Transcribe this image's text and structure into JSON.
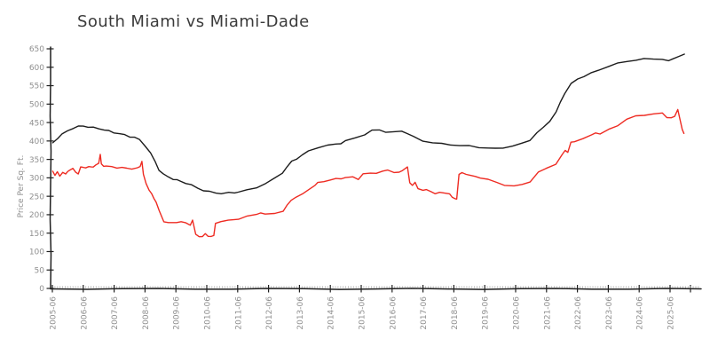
{
  "chart_data": {
    "type": "line",
    "title": "South Miami vs Miami-Dade",
    "xlabel": "",
    "ylabel": "Price Per Sq. Ft.",
    "style": "xkcd-sketch",
    "grid": false,
    "legend": "none",
    "ylim": [
      0,
      650
    ],
    "y_ticks": [
      0,
      50,
      100,
      150,
      200,
      250,
      300,
      350,
      400,
      450,
      500,
      550,
      600,
      650
    ],
    "x_tick_labels": [
      "2005-06",
      "2006-06",
      "2007-06",
      "2008-06",
      "2009-06",
      "2010-06",
      "2011-06",
      "2012-06",
      "2013-06",
      "2014-06",
      "2015-06",
      "2016-06",
      "2017-06",
      "2018-06",
      "2019-06",
      "2020-06",
      "2021-06",
      "2022-06",
      "2023-06",
      "2024-06",
      "2025-06"
    ],
    "x_minor_ticks_per_year": 12,
    "colors": {
      "axis": "#1f1f1f",
      "tick_labels": "#8f8f8f",
      "minor_ticks": "#b3b3b3",
      "title": "#3b3b3b",
      "background": "#ffffff"
    },
    "series": [
      {
        "name": "South Miami",
        "color": "#1c1c1c",
        "points": [
          [
            2005.5,
            395
          ],
          [
            2005.67,
            408
          ],
          [
            2005.83,
            418
          ],
          [
            2006.0,
            428
          ],
          [
            2006.17,
            435
          ],
          [
            2006.33,
            439
          ],
          [
            2006.5,
            441
          ],
          [
            2006.67,
            438
          ],
          [
            2006.83,
            436
          ],
          [
            2007.0,
            434
          ],
          [
            2007.17,
            430
          ],
          [
            2007.33,
            427
          ],
          [
            2007.5,
            423
          ],
          [
            2007.67,
            420
          ],
          [
            2007.83,
            416
          ],
          [
            2008.0,
            412
          ],
          [
            2008.17,
            410
          ],
          [
            2008.33,
            403
          ],
          [
            2008.5,
            388
          ],
          [
            2008.67,
            367
          ],
          [
            2008.83,
            342
          ],
          [
            2008.96,
            322
          ],
          [
            2009.1,
            310
          ],
          [
            2009.25,
            302
          ],
          [
            2009.4,
            297
          ],
          [
            2009.53,
            294
          ],
          [
            2009.67,
            290
          ],
          [
            2009.83,
            286
          ],
          [
            2010.0,
            280
          ],
          [
            2010.2,
            272
          ],
          [
            2010.39,
            266
          ],
          [
            2010.6,
            262
          ],
          [
            2010.8,
            259
          ],
          [
            2010.96,
            258
          ],
          [
            2011.2,
            259
          ],
          [
            2011.4,
            260
          ],
          [
            2011.53,
            262
          ],
          [
            2011.8,
            266
          ],
          [
            2012.1,
            274
          ],
          [
            2012.4,
            285
          ],
          [
            2012.7,
            298
          ],
          [
            2012.96,
            314
          ],
          [
            2013.1,
            330
          ],
          [
            2013.24,
            344
          ],
          [
            2013.4,
            352
          ],
          [
            2013.6,
            362
          ],
          [
            2013.8,
            372
          ],
          [
            2014.1,
            383
          ],
          [
            2014.4,
            388
          ],
          [
            2014.67,
            391
          ],
          [
            2014.85,
            394
          ],
          [
            2015.0,
            400
          ],
          [
            2015.3,
            408
          ],
          [
            2015.6,
            418
          ],
          [
            2015.85,
            428
          ],
          [
            2016.1,
            430
          ],
          [
            2016.3,
            425
          ],
          [
            2016.5,
            423
          ],
          [
            2016.8,
            427
          ],
          [
            2017.0,
            421
          ],
          [
            2017.2,
            411
          ],
          [
            2017.5,
            400
          ],
          [
            2017.8,
            396
          ],
          [
            2018.1,
            392
          ],
          [
            2018.4,
            390
          ],
          [
            2018.7,
            388
          ],
          [
            2019.0,
            386
          ],
          [
            2019.3,
            383
          ],
          [
            2019.6,
            381
          ],
          [
            2019.85,
            379
          ],
          [
            2020.1,
            382
          ],
          [
            2020.4,
            386
          ],
          [
            2020.7,
            393
          ],
          [
            2020.96,
            403
          ],
          [
            2021.2,
            422
          ],
          [
            2021.4,
            436
          ],
          [
            2021.6,
            455
          ],
          [
            2021.8,
            478
          ],
          [
            2021.95,
            505
          ],
          [
            2022.1,
            530
          ],
          [
            2022.3,
            555
          ],
          [
            2022.5,
            568
          ],
          [
            2022.7,
            576
          ],
          [
            2022.96,
            584
          ],
          [
            2023.2,
            592
          ],
          [
            2023.53,
            604
          ],
          [
            2023.8,
            610
          ],
          [
            2024.1,
            616
          ],
          [
            2024.4,
            620
          ],
          [
            2024.67,
            622
          ],
          [
            2024.96,
            623
          ],
          [
            2025.24,
            622
          ],
          [
            2025.45,
            616
          ],
          [
            2025.6,
            624
          ],
          [
            2025.8,
            630
          ],
          [
            2025.96,
            634
          ]
        ]
      },
      {
        "name": "Miami-Dade",
        "color": "#ee2b22",
        "points": [
          [
            2005.5,
            318
          ],
          [
            2005.58,
            308
          ],
          [
            2005.67,
            315
          ],
          [
            2005.75,
            305
          ],
          [
            2005.83,
            316
          ],
          [
            2005.92,
            309
          ],
          [
            2006.0,
            318
          ],
          [
            2006.08,
            322
          ],
          [
            2006.17,
            324
          ],
          [
            2006.25,
            316
          ],
          [
            2006.33,
            311
          ],
          [
            2006.42,
            328
          ],
          [
            2006.5,
            330
          ],
          [
            2006.58,
            327
          ],
          [
            2006.67,
            329
          ],
          [
            2006.75,
            331
          ],
          [
            2006.83,
            329
          ],
          [
            2006.92,
            334
          ],
          [
            2007.0,
            341
          ],
          [
            2007.04,
            363
          ],
          [
            2007.08,
            337
          ],
          [
            2007.17,
            333
          ],
          [
            2007.25,
            331
          ],
          [
            2007.42,
            330
          ],
          [
            2007.58,
            328
          ],
          [
            2007.75,
            327
          ],
          [
            2007.92,
            326
          ],
          [
            2008.08,
            325
          ],
          [
            2008.25,
            326
          ],
          [
            2008.33,
            331
          ],
          [
            2008.4,
            346
          ],
          [
            2008.46,
            308
          ],
          [
            2008.54,
            285
          ],
          [
            2008.62,
            268
          ],
          [
            2008.71,
            255
          ],
          [
            2008.79,
            245
          ],
          [
            2008.87,
            235
          ],
          [
            2008.96,
            210
          ],
          [
            2009.1,
            182
          ],
          [
            2009.25,
            179
          ],
          [
            2009.39,
            177
          ],
          [
            2009.53,
            180
          ],
          [
            2009.67,
            181
          ],
          [
            2009.8,
            177
          ],
          [
            2009.96,
            173
          ],
          [
            2010.05,
            185
          ],
          [
            2010.15,
            146
          ],
          [
            2010.25,
            142
          ],
          [
            2010.35,
            140
          ],
          [
            2010.45,
            148
          ],
          [
            2010.55,
            143
          ],
          [
            2010.65,
            140
          ],
          [
            2010.72,
            143
          ],
          [
            2010.77,
            178
          ],
          [
            2010.96,
            180
          ],
          [
            2011.2,
            185
          ],
          [
            2011.53,
            189
          ],
          [
            2011.8,
            195
          ],
          [
            2012.1,
            201
          ],
          [
            2012.25,
            206
          ],
          [
            2012.4,
            200
          ],
          [
            2012.7,
            204
          ],
          [
            2012.96,
            210
          ],
          [
            2013.1,
            225
          ],
          [
            2013.24,
            240
          ],
          [
            2013.4,
            248
          ],
          [
            2013.6,
            255
          ],
          [
            2013.8,
            270
          ],
          [
            2014.0,
            280
          ],
          [
            2014.1,
            286
          ],
          [
            2014.3,
            291
          ],
          [
            2014.5,
            294
          ],
          [
            2014.67,
            297
          ],
          [
            2014.85,
            299
          ],
          [
            2015.0,
            300
          ],
          [
            2015.24,
            302
          ],
          [
            2015.4,
            297
          ],
          [
            2015.55,
            310
          ],
          [
            2015.8,
            312
          ],
          [
            2016.0,
            314
          ],
          [
            2016.2,
            317
          ],
          [
            2016.35,
            321
          ],
          [
            2016.55,
            316
          ],
          [
            2016.73,
            314
          ],
          [
            2016.85,
            320
          ],
          [
            2017.0,
            331
          ],
          [
            2017.06,
            285
          ],
          [
            2017.15,
            280
          ],
          [
            2017.25,
            289
          ],
          [
            2017.35,
            269
          ],
          [
            2017.5,
            267
          ],
          [
            2017.6,
            269
          ],
          [
            2017.75,
            261
          ],
          [
            2017.9,
            258
          ],
          [
            2018.05,
            261
          ],
          [
            2018.2,
            257
          ],
          [
            2018.35,
            258
          ],
          [
            2018.45,
            247
          ],
          [
            2018.55,
            242
          ],
          [
            2018.6,
            244
          ],
          [
            2018.66,
            309
          ],
          [
            2018.75,
            313
          ],
          [
            2018.9,
            311
          ],
          [
            2019.05,
            306
          ],
          [
            2019.2,
            303
          ],
          [
            2019.35,
            301
          ],
          [
            2019.6,
            295
          ],
          [
            2019.9,
            287
          ],
          [
            2020.15,
            281
          ],
          [
            2020.45,
            277
          ],
          [
            2020.7,
            282
          ],
          [
            2020.96,
            290
          ],
          [
            2021.24,
            314
          ],
          [
            2021.5,
            326
          ],
          [
            2021.8,
            338
          ],
          [
            2022.0,
            362
          ],
          [
            2022.1,
            375
          ],
          [
            2022.2,
            370
          ],
          [
            2022.3,
            395
          ],
          [
            2022.4,
            399
          ],
          [
            2022.67,
            407
          ],
          [
            2022.96,
            415
          ],
          [
            2023.1,
            423
          ],
          [
            2023.24,
            419
          ],
          [
            2023.53,
            431
          ],
          [
            2023.8,
            443
          ],
          [
            2024.1,
            459
          ],
          [
            2024.4,
            467
          ],
          [
            2024.67,
            471
          ],
          [
            2024.96,
            473
          ],
          [
            2025.24,
            475
          ],
          [
            2025.4,
            465
          ],
          [
            2025.55,
            462
          ],
          [
            2025.65,
            466
          ],
          [
            2025.74,
            487
          ],
          [
            2025.82,
            455
          ],
          [
            2025.9,
            431
          ],
          [
            2025.96,
            422
          ]
        ]
      }
    ]
  }
}
